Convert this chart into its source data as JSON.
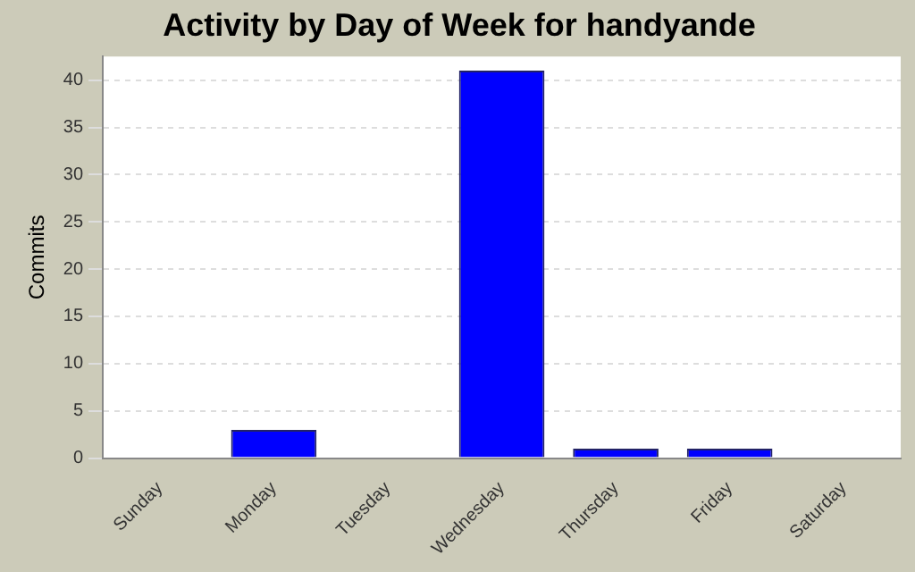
{
  "chart_data": {
    "type": "bar",
    "title": "Activity by Day of Week for handyande",
    "ylabel": "Commits",
    "categories": [
      "Sunday",
      "Monday",
      "Tuesday",
      "Wednesday",
      "Thursday",
      "Friday",
      "Saturday"
    ],
    "values": [
      0,
      3,
      0,
      41,
      1,
      1,
      0
    ],
    "color": "#0000ff",
    "ylim": [
      0,
      42.5
    ],
    "yticks": [
      0,
      5,
      10,
      15,
      20,
      25,
      30,
      35,
      40
    ],
    "grid": "y",
    "legend": false
  }
}
